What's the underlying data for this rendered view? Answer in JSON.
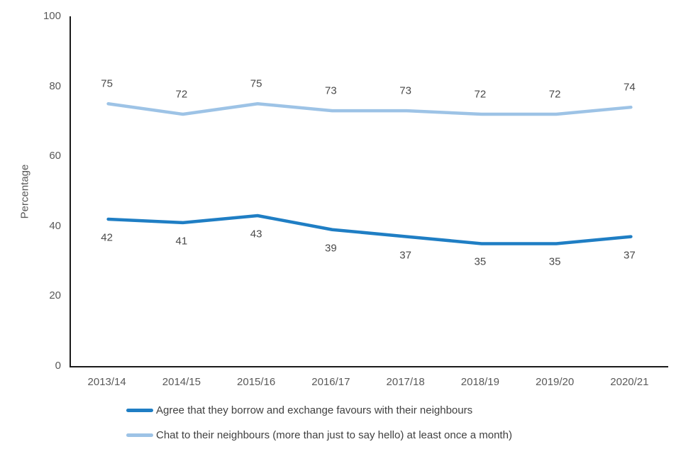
{
  "chart_data": {
    "type": "line",
    "title": "",
    "xlabel": "",
    "ylabel": "Percentage",
    "ylim": [
      0,
      100
    ],
    "yticks": [
      0,
      20,
      40,
      60,
      80,
      100
    ],
    "grid": false,
    "legend_position": "bottom",
    "data_labels": true,
    "categories": [
      "2013/14",
      "2014/15",
      "2015/16",
      "2016/17",
      "2017/18",
      "2018/19",
      "2019/20",
      "2020/21"
    ],
    "series": [
      {
        "name": "Agree that they borrow and exchange favours with their neighbours",
        "values": [
          42,
          41,
          43,
          39,
          37,
          35,
          35,
          37
        ],
        "color": "#1F7EC4",
        "label_position": "below"
      },
      {
        "name": "Chat to their neighbours (more than just to say hello) at least once a month)",
        "values": [
          75,
          72,
          75,
          73,
          73,
          72,
          72,
          74
        ],
        "color": "#9DC3E6",
        "label_position": "above"
      }
    ]
  }
}
